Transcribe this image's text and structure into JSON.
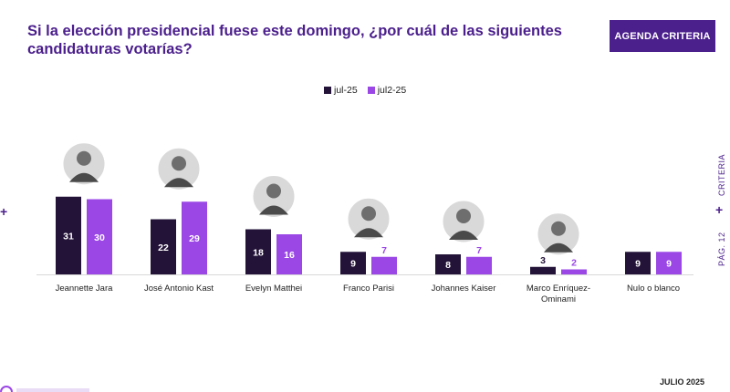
{
  "title": "Si la elección presidencial fuese este domingo, ¿por cuál de las siguientes candidaturas votarías?",
  "brand_button": "AGENDA CRITERIA",
  "side_label": "PÁG. 12",
  "side_brand": "CRITERIA",
  "footer_date": "JULIO 2025",
  "colors": {
    "primary": "#4b1f8c",
    "series1": "#231338",
    "series2": "#9b47e6"
  },
  "chart_data": {
    "type": "bar",
    "categories": [
      "Jeannette Jara",
      "José Antonio Kast",
      "Evelyn Matthei",
      "Franco Parisi",
      "Johannes Kaiser",
      "Marco Enríquez-Ominami",
      "Nulo o blanco"
    ],
    "category_lines": [
      [
        "Jeannette Jara"
      ],
      [
        "José Antonio Kast"
      ],
      [
        "Evelyn Matthei"
      ],
      [
        "Franco Parisi"
      ],
      [
        "Johannes Kaiser"
      ],
      [
        "Marco Enríquez-",
        "Ominami"
      ],
      [
        "Nulo o blanco"
      ]
    ],
    "series": [
      {
        "name": "jul-25",
        "values": [
          31,
          22,
          18,
          9,
          8,
          3,
          9
        ]
      },
      {
        "name": "jul2-25",
        "values": [
          30,
          29,
          16,
          7,
          7,
          2,
          9
        ]
      }
    ],
    "photos": [
      "candidate-photo",
      "candidate-photo",
      "candidate-photo",
      "candidate-photo",
      "candidate-photo",
      "candidate-photo",
      null
    ],
    "ylim": [
      0,
      31
    ],
    "grid": false,
    "legend_position": "top-center"
  }
}
